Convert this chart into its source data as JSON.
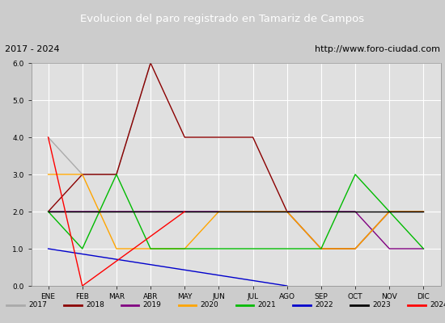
{
  "title": "Evolucion del paro registrado en Tamariz de Campos",
  "subtitle_left": "2017 - 2024",
  "subtitle_right": "http://www.foro-ciudad.com",
  "months": [
    "ENE",
    "FEB",
    "MAR",
    "ABR",
    "MAY",
    "JUN",
    "JUL",
    "AGO",
    "SEP",
    "OCT",
    "NOV",
    "DIC"
  ],
  "ylim": [
    0.0,
    6.0
  ],
  "yticks": [
    0.0,
    1.0,
    2.0,
    3.0,
    4.0,
    5.0,
    6.0
  ],
  "series": {
    "2017": {
      "color": "#aaaaaa",
      "x": [
        1,
        2,
        3,
        4
      ],
      "y": [
        4,
        3,
        3,
        6
      ]
    },
    "2018": {
      "color": "#8b0000",
      "x": [
        1,
        2,
        3,
        4,
        5,
        6,
        7,
        8,
        9,
        10,
        11,
        12
      ],
      "y": [
        2,
        3,
        3,
        6,
        4,
        4,
        4,
        2,
        1,
        1,
        2,
        2
      ]
    },
    "2019": {
      "color": "#800080",
      "x": [
        1,
        2,
        3,
        4,
        5,
        6,
        7,
        8,
        9,
        10,
        11,
        12
      ],
      "y": [
        2,
        2,
        2,
        2,
        2,
        2,
        2,
        2,
        2,
        2,
        1,
        1
      ]
    },
    "2020": {
      "color": "#ffa500",
      "x": [
        1,
        2,
        3,
        4,
        5,
        6,
        7,
        8,
        9,
        10,
        11,
        12
      ],
      "y": [
        3,
        3,
        1,
        1,
        1,
        2,
        2,
        2,
        1,
        1,
        2,
        2
      ]
    },
    "2021": {
      "color": "#00bb00",
      "x": [
        1,
        2,
        3,
        4,
        5,
        6,
        7,
        8,
        9,
        10,
        11,
        12
      ],
      "y": [
        2,
        1,
        3,
        1,
        1,
        1,
        1,
        1,
        1,
        3,
        2,
        1
      ]
    },
    "2022": {
      "color": "#0000cc",
      "x": [
        1,
        8
      ],
      "y": [
        1,
        0
      ]
    },
    "2023": {
      "color": "#000000",
      "x": [
        1,
        2,
        3,
        4,
        5,
        6,
        7,
        8,
        9,
        10,
        11,
        12
      ],
      "y": [
        2,
        2,
        2,
        2,
        2,
        2,
        2,
        2,
        2,
        2,
        2,
        2
      ]
    },
    "2024": {
      "color": "#ff0000",
      "x": [
        1,
        2,
        5
      ],
      "y": [
        4,
        0,
        2
      ]
    }
  },
  "legend_order": [
    "2017",
    "2018",
    "2019",
    "2020",
    "2021",
    "2022",
    "2023",
    "2024"
  ],
  "title_bg_color": "#3a5fc8",
  "title_text_color": "#ffffff",
  "subtitle_bg_color": "#d8d8d8",
  "plot_bg_color": "#e0e0e0",
  "grid_color": "#ffffff",
  "legend_bg_color": "#e8e8e8"
}
